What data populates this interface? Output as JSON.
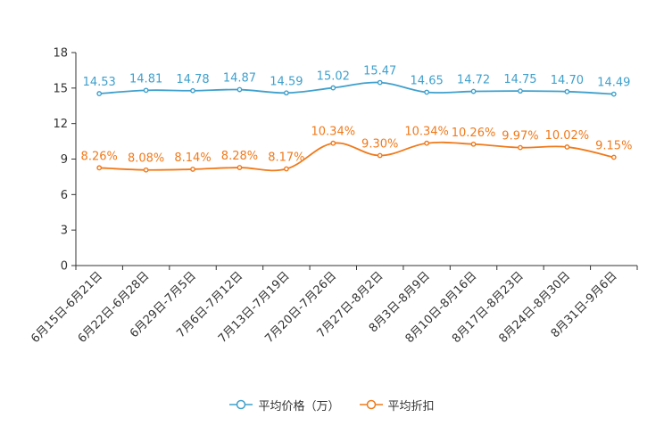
{
  "chart_data": {
    "type": "line",
    "categories": [
      "6月15日-6月21日",
      "6月22日-6月28日",
      "6月29日-7月5日",
      "7月6日-7月12日",
      "7月13日-7月19日",
      "7月20日-7月26日",
      "7月27日-8月2日",
      "8月3日-8月9日",
      "8月10日-8月16日",
      "8月17日-8月23日",
      "8月24日-8月30日",
      "8月31日-9月6日"
    ],
    "series": [
      {
        "name": "平均价格（万）",
        "color": "#3fa0cc",
        "values": [
          14.53,
          14.81,
          14.78,
          14.87,
          14.59,
          15.02,
          15.47,
          14.65,
          14.72,
          14.75,
          14.7,
          14.49
        ],
        "labels": [
          "14.53",
          "14.81",
          "14.78",
          "14.87",
          "14.59",
          "15.02",
          "15.47",
          "14.65",
          "14.72",
          "14.75",
          "14.70",
          "14.49"
        ]
      },
      {
        "name": "平均折扣",
        "color": "#f07a1b",
        "values": [
          8.26,
          8.08,
          8.14,
          8.28,
          8.17,
          10.34,
          9.3,
          10.34,
          10.26,
          9.97,
          10.02,
          9.15
        ],
        "labels": [
          "8.26%",
          "8.08%",
          "8.14%",
          "8.28%",
          "8.17%",
          "10.34%",
          "9.30%",
          "10.34%",
          "10.26%",
          "9.97%",
          "10.02%",
          "9.15%"
        ]
      }
    ],
    "ylim": [
      0,
      18
    ],
    "yticks": [
      0,
      3,
      6,
      9,
      12,
      15,
      18
    ],
    "xlabel": "",
    "ylabel": "",
    "title": "",
    "grid": false,
    "legend_position": "bottom-center"
  }
}
